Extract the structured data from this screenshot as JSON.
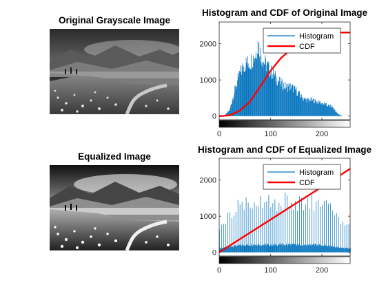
{
  "titles": {
    "original_image": "Original Grayscale Image",
    "equalized_image": "Equalized Image",
    "hist_original": "Histogram and CDF of Original Image",
    "hist_equalized": "Histogram and CDF of Equalized Image"
  },
  "colors": {
    "histogram": "#0072BD",
    "cdf": "#FF0000",
    "axes": "#262626"
  },
  "chart_data": [
    {
      "type": "bar",
      "title": "Histogram and CDF of Original Image",
      "xlim": [
        0,
        255
      ],
      "ylim": [
        -100,
        2600
      ],
      "xticks": [
        "0",
        "100",
        "200"
      ],
      "yticks": [
        "0",
        "1000",
        "2000"
      ],
      "legend": {
        "placement": "top-right",
        "entries": [
          "Histogram",
          "CDF"
        ]
      },
      "series": [
        {
          "name": "Histogram",
          "kind": "histogram",
          "bins": [
            0,
            10,
            20,
            30,
            40,
            50,
            60,
            70,
            75,
            80,
            85,
            90,
            100,
            110,
            120,
            130,
            140,
            150,
            160,
            170,
            180,
            190,
            200,
            210,
            220,
            230,
            240,
            255
          ],
          "values": [
            0,
            20,
            200,
            850,
            1400,
            1700,
            1750,
            2000,
            2350,
            2050,
            1800,
            1700,
            1450,
            1250,
            1050,
            950,
            950,
            820,
            620,
            520,
            520,
            470,
            420,
            350,
            300,
            80,
            0,
            0
          ]
        },
        {
          "name": "CDF",
          "kind": "line",
          "x": [
            0,
            20,
            40,
            60,
            80,
            100,
            120,
            140,
            160,
            180,
            200,
            220,
            240,
            255
          ],
          "values": [
            0,
            20,
            150,
            400,
            820,
            1250,
            1600,
            1850,
            2050,
            2180,
            2260,
            2300,
            2310,
            2310
          ]
        }
      ]
    },
    {
      "type": "bar",
      "title": "Histogram and CDF of Equalized Image",
      "xlim": [
        0,
        255
      ],
      "ylim": [
        -100,
        2600
      ],
      "xticks": [
        "0",
        "100",
        "200"
      ],
      "yticks": [
        "0",
        "1000",
        "2000"
      ],
      "legend": {
        "placement": "top-right",
        "entries": [
          "Histogram",
          "CDF"
        ]
      },
      "series": [
        {
          "name": "Histogram",
          "kind": "histogram",
          "bins": [
            0,
            10,
            20,
            30,
            40,
            50,
            60,
            70,
            80,
            90,
            100,
            110,
            120,
            130,
            140,
            150,
            160,
            170,
            180,
            190,
            200,
            210,
            220,
            230,
            240,
            255
          ],
          "values": [
            900,
            1000,
            1200,
            1400,
            1500,
            1600,
            1650,
            1700,
            1700,
            1650,
            1600,
            1600,
            1650,
            1700,
            1650,
            1600,
            1550,
            1550,
            1600,
            1700,
            1500,
            1450,
            1300,
            1100,
            950,
            850
          ]
        },
        {
          "name": "CDF",
          "kind": "line",
          "x": [
            0,
            255
          ],
          "values": [
            0,
            2310
          ]
        }
      ]
    }
  ]
}
